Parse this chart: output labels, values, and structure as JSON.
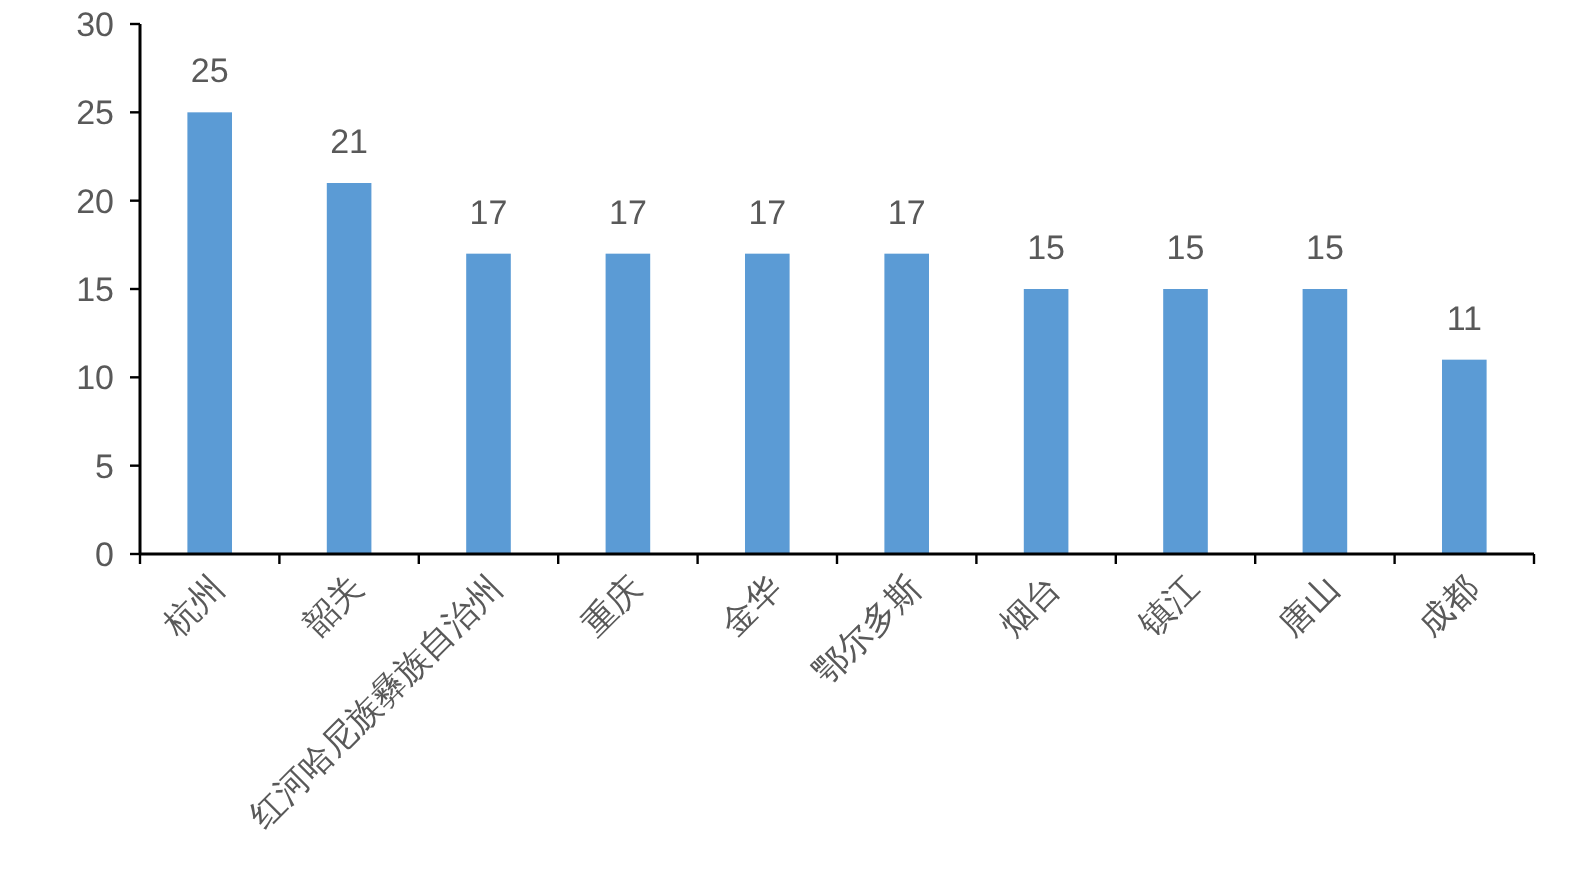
{
  "chart_data": {
    "type": "bar",
    "categories": [
      "杭州",
      "韶关",
      "红河哈尼族彝族自治州",
      "重庆",
      "金华",
      "鄂尔多斯",
      "烟台",
      "镇江",
      "唐山",
      "成都"
    ],
    "values": [
      25,
      21,
      17,
      17,
      17,
      17,
      15,
      15,
      15,
      11
    ],
    "color": "#5b9bd5",
    "ylim": [
      0,
      30
    ],
    "yticks": [
      0,
      5,
      10,
      15,
      20,
      25,
      30
    ],
    "data_labels": true
  }
}
